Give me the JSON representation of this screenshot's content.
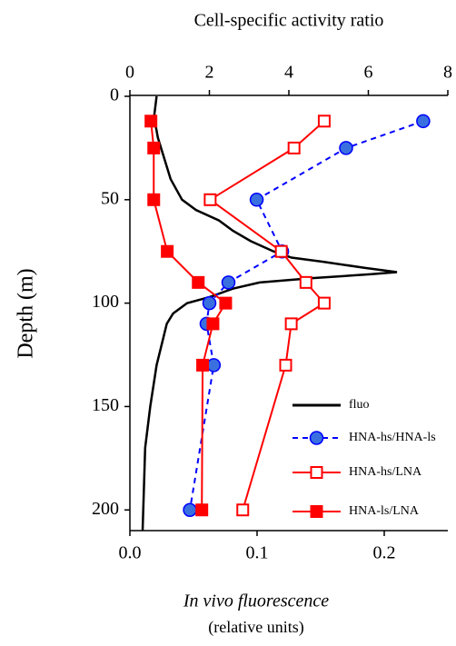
{
  "chart_data": {
    "type": "line",
    "x2label": "Cell-specific activity ratio",
    "ylabel": "Depth (m)",
    "xlabel": "In vivo fluorescence",
    "xlabel_units": "(relative units)",
    "ylim": [
      0,
      210
    ],
    "yticks": [
      0,
      50,
      100,
      150,
      200
    ],
    "y_inverted": true,
    "xlim": [
      0,
      0.25
    ],
    "xticks": [
      {
        "value": 0,
        "label": "0.0"
      },
      0.1,
      0.2
    ],
    "x2lim": [
      0,
      8
    ],
    "x2ticks": [
      0,
      2,
      4,
      6,
      8
    ],
    "legend": "lower right",
    "series": [
      {
        "name": "fluo",
        "color": "#000000",
        "axis": "x",
        "marker": "none",
        "dash": false,
        "depth": [
          0,
          10,
          20,
          30,
          40,
          50,
          55,
          60,
          65,
          70,
          75,
          78,
          80,
          83,
          85,
          86,
          88,
          90,
          93,
          97,
          100,
          105,
          110,
          120,
          130,
          150,
          170,
          190,
          210
        ],
        "values": [
          0.021,
          0.019,
          0.022,
          0.027,
          0.032,
          0.041,
          0.052,
          0.07,
          0.081,
          0.095,
          0.113,
          0.127,
          0.152,
          0.185,
          0.21,
          0.19,
          0.142,
          0.102,
          0.081,
          0.063,
          0.045,
          0.034,
          0.029,
          0.025,
          0.021,
          0.016,
          0.012,
          0.011,
          0.01
        ]
      },
      {
        "name": "HNA-hs/HNA-ls",
        "color": "#0000ff",
        "fill": "#3a6fe0",
        "axis": "x2",
        "marker": "circle",
        "dash": true,
        "depth": [
          12,
          25,
          50,
          75,
          90,
          100,
          110,
          130,
          200
        ],
        "values": [
          7.38,
          5.44,
          3.19,
          3.83,
          2.48,
          2.0,
          1.93,
          2.11,
          1.51
        ]
      },
      {
        "name": "HNA-hs/LNA",
        "color": "#ff0000",
        "fill": "#ffffff",
        "axis": "x2",
        "marker": "square",
        "dash": false,
        "depth": [
          12,
          25,
          50,
          75,
          90,
          100,
          110,
          130,
          200
        ],
        "values": [
          4.89,
          4.13,
          2.02,
          3.81,
          4.43,
          4.89,
          4.06,
          3.92,
          2.84
        ]
      },
      {
        "name": "HNA-ls/LNA",
        "color": "#ff0000",
        "fill": "#ff0000",
        "axis": "x2",
        "marker": "square",
        "dash": false,
        "depth": [
          12,
          25,
          50,
          75,
          90,
          100,
          110,
          130,
          200
        ],
        "values": [
          0.53,
          0.6,
          0.6,
          0.94,
          1.72,
          2.41,
          2.09,
          1.83,
          1.81
        ]
      }
    ]
  }
}
